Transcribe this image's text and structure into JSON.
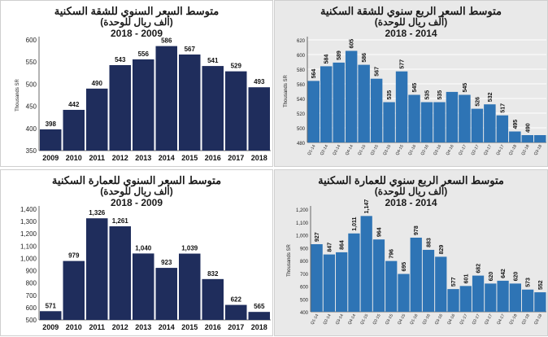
{
  "chart_data": [
    {
      "id": "apt-annual",
      "type": "bar",
      "title": "متوسط السعر السنوي للشقة السكنية",
      "subtitle": "(ألف ريال للوحدة)",
      "period": "2018 - 2009",
      "ylabel": "Thousands SR",
      "categories": [
        "2009",
        "2010",
        "2011",
        "2012",
        "2013",
        "2014",
        "2015",
        "2016",
        "2017",
        "2018"
      ],
      "values": [
        398,
        442,
        490,
        543,
        556,
        586,
        567,
        541,
        529,
        493
      ],
      "ylim": [
        350,
        600
      ],
      "yticks": [
        350,
        400,
        450,
        500,
        550,
        600
      ],
      "bar_color": "#1f2d5c",
      "grid": false
    },
    {
      "id": "apt-quarterly",
      "type": "bar",
      "title": "متوسط السعر الربع سنوي للشقة السكنية",
      "subtitle": "(ألف ريال للوحدة)",
      "period": "2018 - 2014",
      "ylabel": "Thousands SR",
      "categories": [
        "Q1-14",
        "Q2-14",
        "Q3-14",
        "Q4-14",
        "Q1-15",
        "Q2-15",
        "Q3-15",
        "Q4-15",
        "Q1-16",
        "Q2-16",
        "Q3-16",
        "Q4-16",
        "Q1-17",
        "Q2-17",
        "Q3-17",
        "Q4-17",
        "Q1-18",
        "Q2-18",
        "Q3-18"
      ],
      "values": [
        564,
        584,
        589,
        605,
        586,
        567,
        535,
        577,
        545,
        535,
        535,
        549,
        545,
        526,
        532,
        517,
        495,
        490,
        490
      ],
      "labeled": [
        true,
        true,
        true,
        true,
        true,
        true,
        true,
        true,
        true,
        true,
        true,
        false,
        true,
        true,
        true,
        true,
        true,
        true,
        false
      ],
      "ylim": [
        480,
        620
      ],
      "yticks": [
        480,
        500,
        520,
        540,
        560,
        580,
        600,
        620
      ],
      "bar_color": "#2e74b5",
      "grid": true
    },
    {
      "id": "villa-annual",
      "type": "bar",
      "title": "متوسط السعر السنوي للعمارة السكنية",
      "subtitle": "(ألف ريال للوحدة)",
      "period": "2018 - 2009",
      "ylabel": "",
      "categories": [
        "2009",
        "2010",
        "2011",
        "2012",
        "2013",
        "2014",
        "2015",
        "2016",
        "2017",
        "2018"
      ],
      "values": [
        571,
        979,
        1326,
        1261,
        1040,
        923,
        1039,
        832,
        622,
        565
      ],
      "value_labels": [
        "571",
        "979",
        "1,326",
        "1,261",
        "1,040",
        "923",
        "1,039",
        "832",
        "622",
        "565"
      ],
      "ylim": [
        500,
        1400
      ],
      "yticks": [
        500,
        600,
        700,
        800,
        900,
        1000,
        1100,
        1200,
        1300,
        1400
      ],
      "ytick_labels": [
        "500",
        "600",
        "700",
        "800",
        "900",
        "1,000",
        "1,100",
        "1,200",
        "1,300",
        "1,400"
      ],
      "bar_color": "#1f2d5c",
      "grid": false
    },
    {
      "id": "villa-quarterly",
      "type": "bar",
      "title": "متوسط السعر الربع سنوي للعمارة السكنية",
      "subtitle": "(ألف ريال للوحدة)",
      "period": "2018 - 2014",
      "ylabel": "Thousands SR",
      "categories": [
        "Q1-14",
        "Q2-14",
        "Q3-14",
        "Q4-14",
        "Q1-15",
        "Q2-15",
        "Q3-15",
        "Q4-15",
        "Q1-16",
        "Q2-16",
        "Q3-16",
        "Q4-16",
        "Q1-17",
        "Q2-17",
        "Q3-17",
        "Q4-17",
        "Q1-18",
        "Q2-18",
        "Q3-18"
      ],
      "values": [
        927,
        847,
        864,
        1011,
        1147,
        964,
        796,
        695,
        978,
        883,
        829,
        577,
        601,
        682,
        620,
        642,
        620,
        573,
        552
      ],
      "value_labels": [
        "927",
        "847",
        "864",
        "1,011",
        "1,147",
        "964",
        "796",
        "695",
        "978",
        "883",
        "829",
        "577",
        "601",
        "682",
        "620",
        "642",
        "620",
        "573",
        "552"
      ],
      "ylim": [
        400,
        1200
      ],
      "yticks": [
        400,
        500,
        600,
        700,
        800,
        900,
        1000,
        1100,
        1200
      ],
      "ytick_labels": [
        "400",
        "500",
        "600",
        "700",
        "800",
        "900",
        "1,000",
        "1,100",
        "1,200"
      ],
      "bar_color": "#2e74b5",
      "grid": false
    }
  ]
}
